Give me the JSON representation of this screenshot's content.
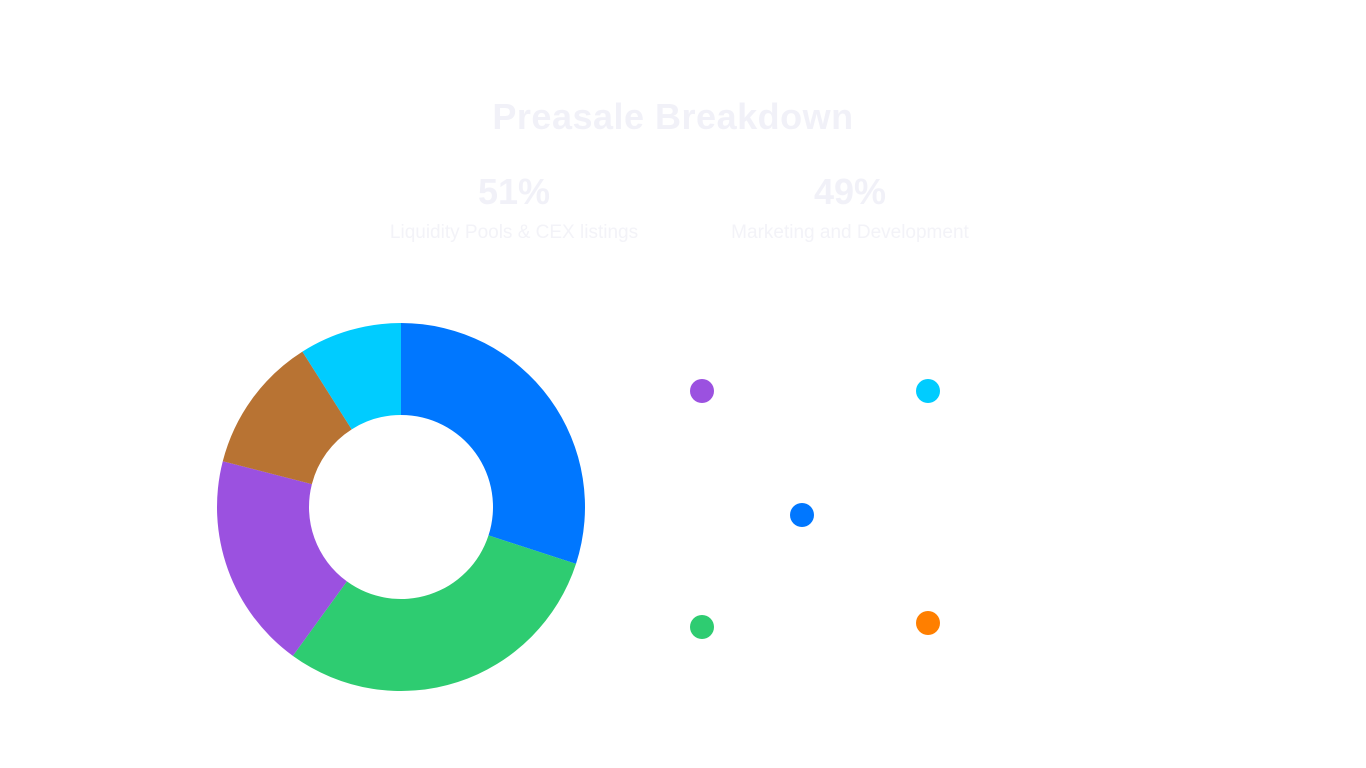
{
  "header": {
    "title": "Preasale Breakdown"
  },
  "stats": [
    {
      "percent": "51%",
      "label": "Liquidity Pools & CEX listings"
    },
    {
      "percent": "49%",
      "label": "Marketing and Development"
    }
  ],
  "chart_data": {
    "type": "pie",
    "donut": true,
    "unit": "%",
    "slices": [
      {
        "value": 30,
        "color": "#0077ff"
      },
      {
        "value": 30,
        "color": "#2ecc71"
      },
      {
        "value": 19,
        "color": "#9b51e0"
      },
      {
        "value": 12,
        "color": "#b87333"
      },
      {
        "value": 9,
        "color": "#00ccff"
      }
    ],
    "legend": [
      {
        "color": "#9b51e0",
        "label": ""
      },
      {
        "color": "#00ccff",
        "label": ""
      },
      {
        "color": "#0077ff",
        "label": ""
      },
      {
        "color": "#2ecc71",
        "label": ""
      },
      {
        "color": "#ff7f00",
        "label": ""
      }
    ]
  }
}
